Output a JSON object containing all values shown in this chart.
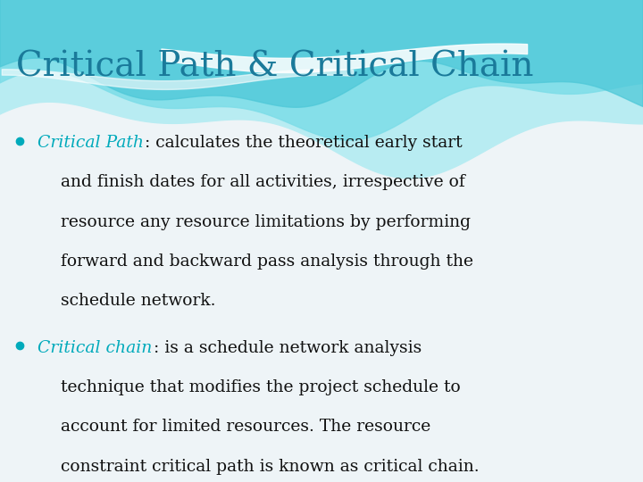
{
  "title": "Critical Path & Critical Chain",
  "title_color": "#1a7a9a",
  "title_fontsize": 28,
  "bg_color": "#eef4f7",
  "teal_color": "#00aabb",
  "dark_color": "#111111",
  "bullet1_label": "Critical Path",
  "bullet2_label": "Critical chain",
  "bullet_fontsize": 13.5,
  "line1_b1": [
    ": calculates the theoretical early start"
  ],
  "lines_b1": [
    "and finish dates for all activities, irrespective of",
    "resource any resource limitations by performing",
    "forward and backward pass analysis through the",
    "schedule network."
  ],
  "line1_b2": [
    ": is a schedule network analysis"
  ],
  "lines_b2": [
    "technique that modifies the project schedule to",
    "account for limited resources. The resource",
    "constraint critical path is known as critical chain."
  ],
  "wave_teal_dark": "#4ec8d8",
  "wave_teal_mid": "#7ddde8",
  "wave_teal_light": "#b8ecf2",
  "wave_white": "#e8f8fa"
}
